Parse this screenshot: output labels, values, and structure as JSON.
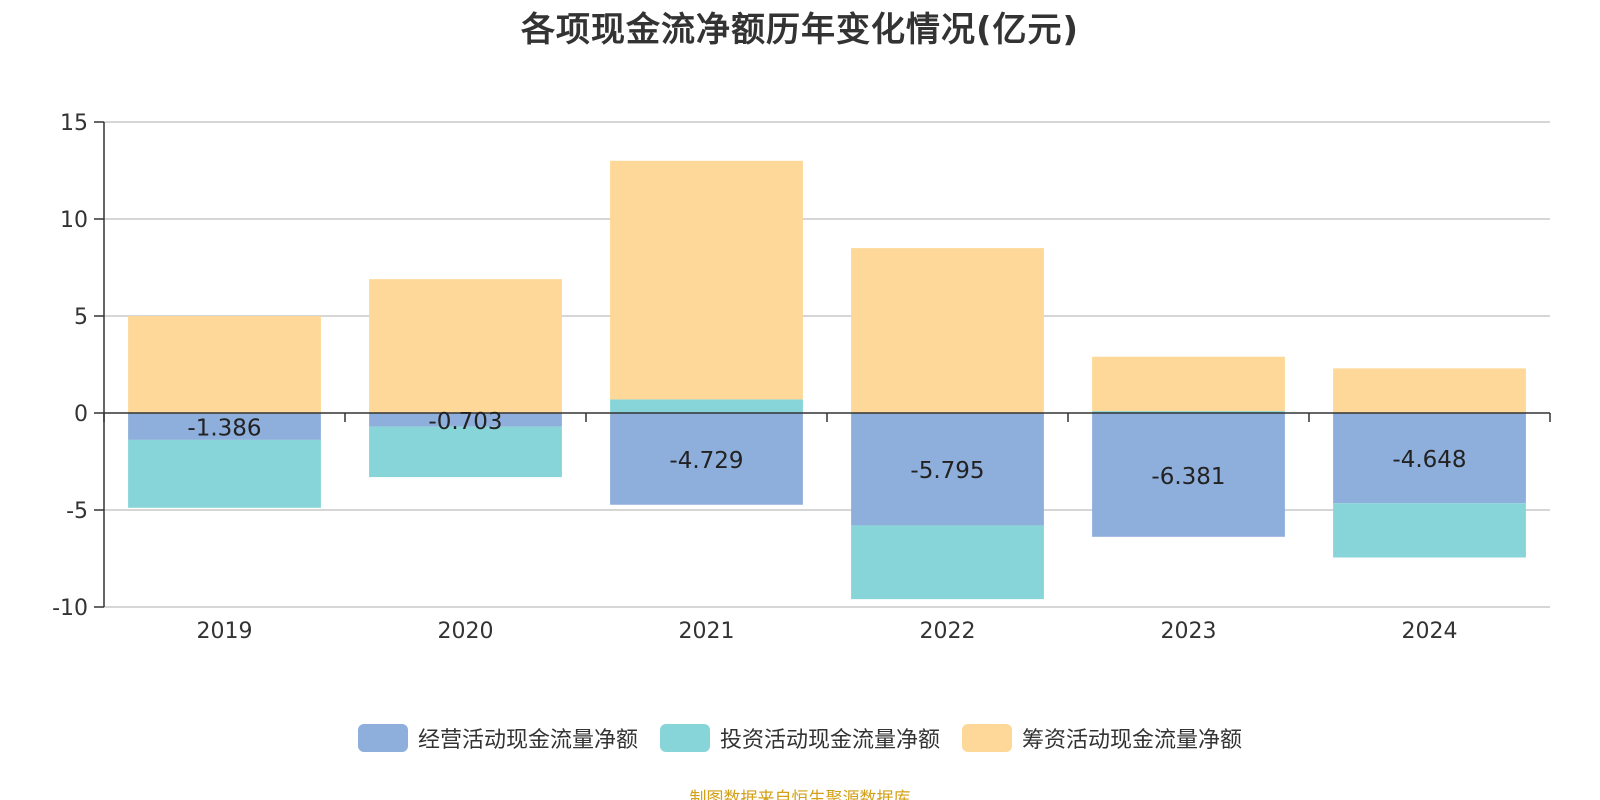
{
  "chart_data": {
    "type": "bar",
    "stacked": true,
    "title": "各项现金流净额历年变化情况(亿元)",
    "categories": [
      "2019",
      "2020",
      "2021",
      "2022",
      "2023",
      "2024"
    ],
    "ylim": [
      -10,
      15
    ],
    "yticks": [
      15,
      10,
      5,
      0,
      -5,
      -10
    ],
    "grid": true,
    "legend_position": "bottom",
    "series": [
      {
        "name": "经营活动现金流量净额",
        "color": "#8eaedb",
        "values": [
          -1.386,
          -0.703,
          -4.729,
          -5.795,
          -6.381,
          -4.648
        ],
        "labels": [
          "-1.386",
          "-0.703",
          "-4.729",
          "-5.795",
          "-6.381",
          "-4.648"
        ]
      },
      {
        "name": "投资活动现金流量净额",
        "color": "#87d5d8",
        "values": [
          -3.5,
          -2.6,
          0.7,
          -3.8,
          0.1,
          -2.8
        ]
      },
      {
        "name": "筹资活动现金流量净额",
        "color": "#fdd898",
        "values": [
          5.0,
          6.9,
          12.3,
          8.5,
          2.8,
          2.3
        ]
      }
    ]
  },
  "source_note": "制图数据来自恒生聚源数据库"
}
